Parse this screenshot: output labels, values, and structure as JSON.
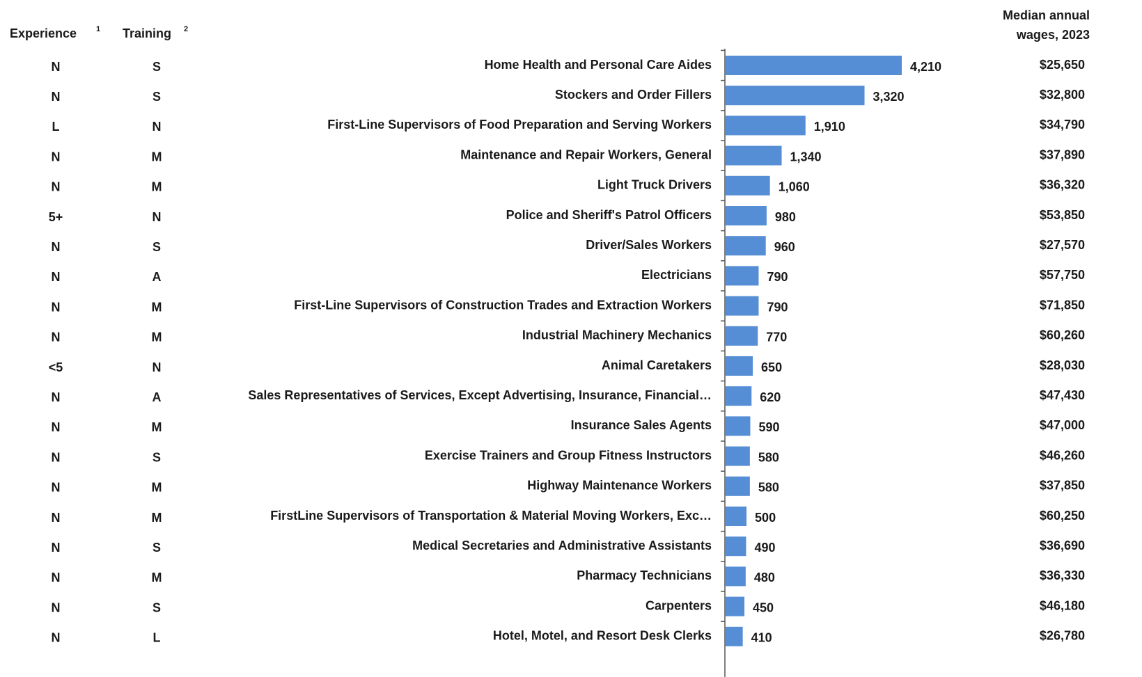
{
  "chart_data": {
    "type": "bar",
    "orientation": "horizontal",
    "color": "#558ed5",
    "columns": {
      "experience": {
        "title": "Experience",
        "note": "1"
      },
      "training": {
        "title": "Training",
        "note": "2"
      },
      "wages": {
        "title": [
          "Median annual",
          "wages, 2023"
        ]
      }
    },
    "categories": [
      "Home Health and Personal Care Aides",
      "Stockers and Order Fillers",
      "First-Line Supervisors of Food Preparation and Serving Workers",
      "Maintenance and Repair Workers, General",
      "Light Truck Drivers",
      "Police and Sheriff's Patrol Officers",
      "Driver/Sales Workers",
      "Electricians",
      "First-Line Supervisors of Construction Trades and Extraction Workers",
      "Industrial Machinery Mechanics",
      "Animal Caretakers",
      "Sales Representatives of Services, Except Advertising, Insurance, Financial…",
      "Insurance Sales Agents",
      "Exercise Trainers and Group Fitness Instructors",
      "Highway Maintenance Workers",
      "FirstLine Supervisors of Transportation & Material Moving Workers, Exc…",
      "Medical Secretaries and Administrative Assistants",
      "Pharmacy Technicians",
      "Carpenters",
      "Hotel, Motel, and Resort Desk Clerks"
    ],
    "values": [
      4210,
      3320,
      1910,
      1340,
      1060,
      980,
      960,
      790,
      790,
      770,
      650,
      620,
      590,
      580,
      580,
      500,
      490,
      480,
      450,
      410
    ],
    "value_labels": [
      "4,210",
      "3,320",
      "1,910",
      "1,340",
      "1,060",
      "980",
      "960",
      "790",
      "790",
      "770",
      "650",
      "620",
      "590",
      "580",
      "580",
      "500",
      "490",
      "480",
      "450",
      "410"
    ],
    "experience": [
      "N",
      "N",
      "L",
      "N",
      "N",
      "5+",
      "N",
      "N",
      "N",
      "N",
      "<5",
      "N",
      "N",
      "N",
      "N",
      "N",
      "N",
      "N",
      "N",
      "N"
    ],
    "training": [
      "S",
      "S",
      "N",
      "M",
      "M",
      "N",
      "S",
      "A",
      "M",
      "M",
      "N",
      "A",
      "M",
      "S",
      "M",
      "M",
      "S",
      "M",
      "S",
      "L"
    ],
    "wages": [
      "$25,650",
      "$32,800",
      "$34,790",
      "$37,890",
      "$36,320",
      "$53,850",
      "$27,570",
      "$57,750",
      "$71,850",
      "$60,260",
      "$28,030",
      "$47,430",
      "$47,000",
      "$46,260",
      "$37,850",
      "$60,250",
      "$36,690",
      "$36,330",
      "$46,180",
      "$26,780"
    ]
  }
}
